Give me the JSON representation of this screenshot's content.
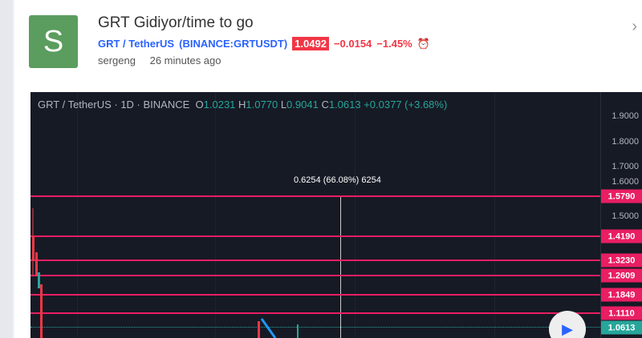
{
  "idea": {
    "avatar_letter": "S",
    "title": "GRT Gidiyor/time to go",
    "symbol_name": "GRT / TetherUS",
    "symbol_code": "(BINANCE:GRTUSDT)",
    "price": "1.0492",
    "change": "−0.0154",
    "change_pct": "−1.45%",
    "author": "sergeng",
    "time": "26 minutes ago"
  },
  "chart": {
    "legend_symbol": "GRT / TetherUS · 1D · BINANCE",
    "o_label": "O",
    "o": "1.0231",
    "h_label": "H",
    "h": "1.0770",
    "l_label": "L",
    "l": "0.9041",
    "c_label": "C",
    "c": "1.0613",
    "change": "+0.0377 (+3.68%)",
    "axis_ticks": [
      "1.9000",
      "1.8000",
      "1.7000",
      "1.6000",
      "1.5000"
    ],
    "levels": [
      "1.5790",
      "1.4190",
      "1.3230",
      "1.2609",
      "1.1849",
      "1.1110"
    ],
    "current_price": "1.0613",
    "measure_label": "0.6254 (66.08%) 6254",
    "colors": {
      "level": "#e91e63",
      "up": "#26a69a",
      "down": "#f23645",
      "background": "#161a25"
    }
  }
}
